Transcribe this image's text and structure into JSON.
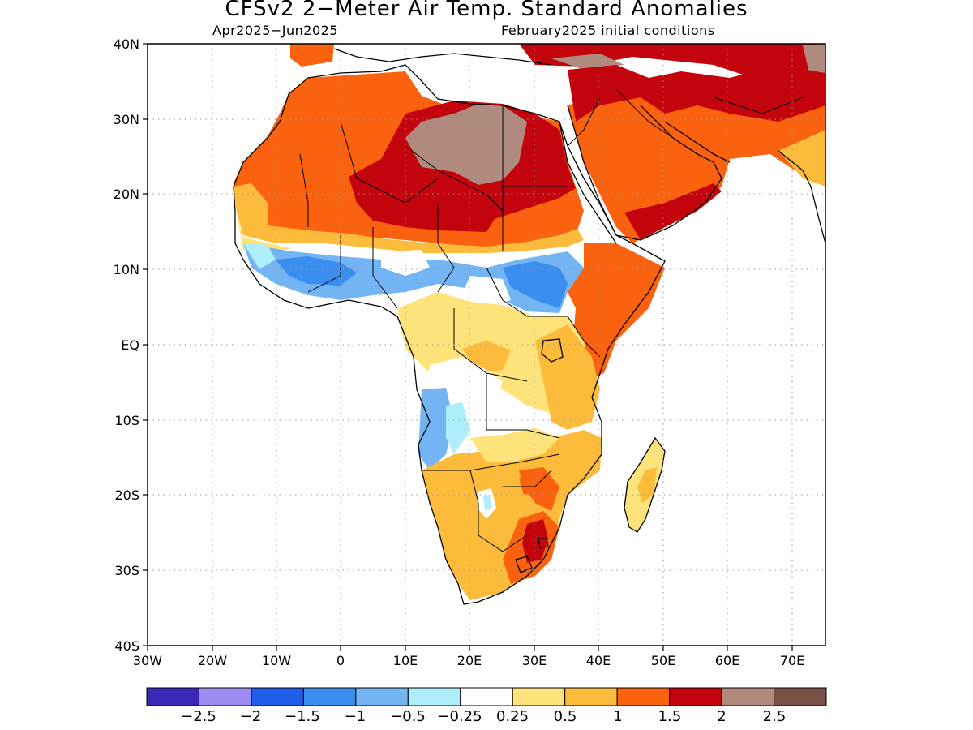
{
  "title": "CFSv2 2−Meter Air Temp. Standard Anomalies",
  "subtitle_left": "Apr2025−Jun2025",
  "subtitle_right": "February2025 initial conditions",
  "map": {
    "lon_range": [
      -30,
      75
    ],
    "lat_range": [
      -40,
      40
    ],
    "lat_labels": [
      "40N",
      "30N",
      "20N",
      "10N",
      "EQ",
      "10S",
      "20S",
      "30S",
      "40S"
    ],
    "lon_labels": [
      "30W",
      "20W",
      "10W",
      "0",
      "10E",
      "20E",
      "30E",
      "40E",
      "50E",
      "60E",
      "70E"
    ],
    "grid": "dotted"
  },
  "colorbar": {
    "colors": [
      "#3a28b8",
      "#9a8cf2",
      "#1f5ee8",
      "#3a8ef0",
      "#72b4f4",
      "#aeeefa",
      "#ffffff",
      "#fee27a",
      "#fdbb3b",
      "#fb620f",
      "#c4040c",
      "#b18a7f",
      "#7b5046"
    ],
    "labels": [
      "−2.5",
      "−2",
      "−1.5",
      "−1",
      "−0.5",
      "−0.25",
      "0.25",
      "0.5",
      "1",
      "1.5",
      "2",
      "2.5"
    ]
  },
  "regions": [
    {
      "name": "sahara-central-brown",
      "color": "#b18a7f"
    },
    {
      "name": "sahara-darkred",
      "color": "#c4040c"
    },
    {
      "name": "north-africa-orange",
      "color": "#fb620f"
    },
    {
      "name": "arabia-orange",
      "color": "#fb620f"
    },
    {
      "name": "middle-east-darkred",
      "color": "#c4040c"
    },
    {
      "name": "sahel-blue",
      "color": "#72b4f4"
    },
    {
      "name": "central-africa-lightorange",
      "color": "#fdbb3b"
    },
    {
      "name": "southern-africa-lightorange",
      "color": "#fdbb3b"
    },
    {
      "name": "madagascar-lightorange",
      "color": "#fee27a"
    }
  ]
}
